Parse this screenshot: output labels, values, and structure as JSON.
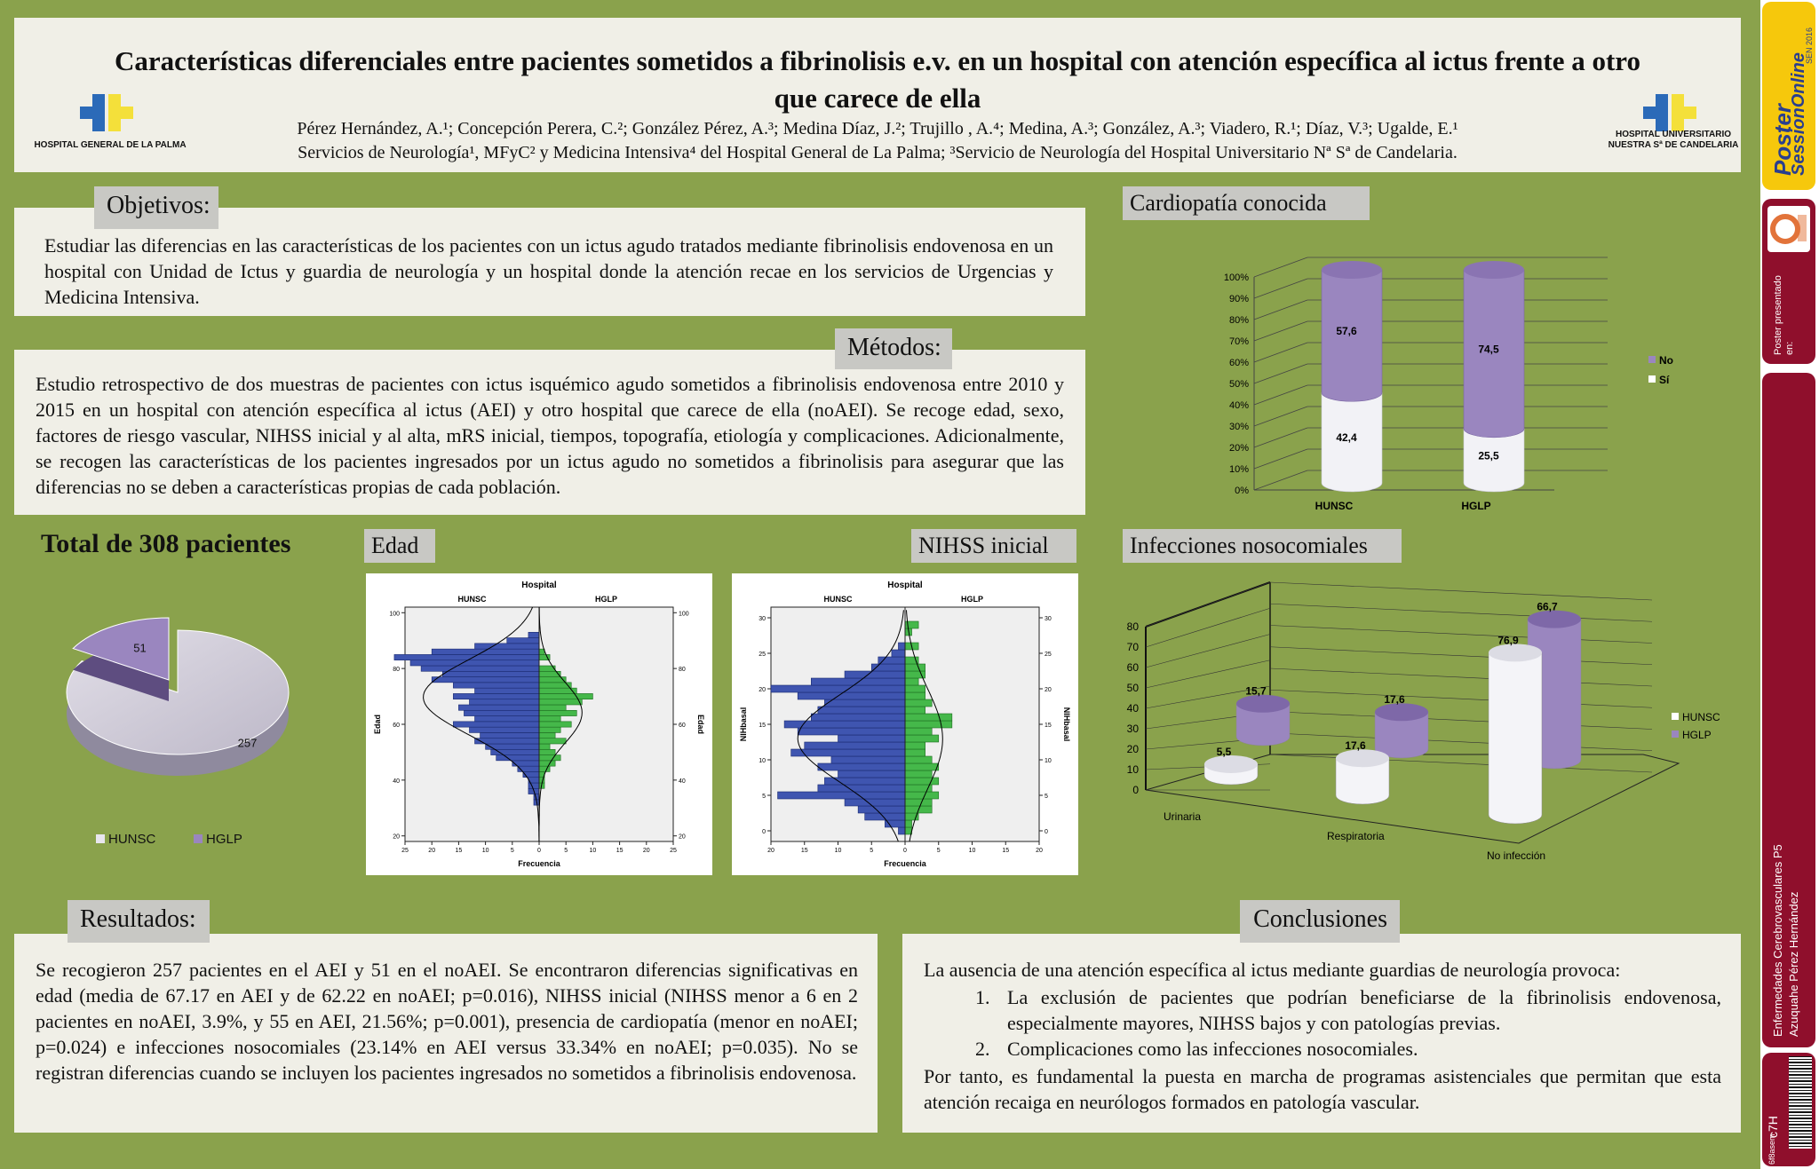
{
  "header": {
    "title": "Características diferenciales entre pacientes sometidos a fibrinolisis e.v. en un hospital con atención específica al ictus frente a otro que carece de ella",
    "authors": "Pérez Hernández, A.¹; Concepción Perera, C.²; González Pérez, A.³; Medina Díaz, J.²; Trujillo , A.⁴; Medina, A.³; González, A.³; Viadero, R.¹; Díaz, V.³; Ugalde, E.¹",
    "affiliations": "Servicios de Neurología¹, MFyC² y Medicina Intensiva⁴ del Hospital General de La Palma; ³Servicio de Neurología del Hospital Universitario Nª Sª de Candelaria.",
    "logo_left_caption": "HOSPITAL GENERAL DE LA PALMA",
    "logo_right_caption_1": "HOSPITAL UNIVERSITARIO",
    "logo_right_caption_2": "NUESTRA Sª DE CANDELARIA"
  },
  "objetivos": {
    "heading": "Objetivos:",
    "text": "Estudiar las diferencias en las características de los pacientes con un ictus agudo tratados mediante fibrinolisis endovenosa en un hospital con Unidad de Ictus y guardia de neurología y un hospital donde la atención recae en los servicios de Urgencias y Medicina Intensiva."
  },
  "metodos": {
    "heading": "Métodos:",
    "text": "Estudio retrospectivo de dos muestras de pacientes con ictus isquémico agudo sometidos a fibrinolisis endovenosa entre 2010 y 2015 en un hospital con atención específica al ictus (AEI) y otro hospital que carece de ella (noAEI). Se recoge edad, sexo, factores de riesgo vascular, NIHSS inicial y al alta, mRS inicial, tiempos, topografía, etiología y complicaciones. Adicionalmente, se recogen las características de los pacientes ingresados por un ictus agudo no sometidos a fibrinolisis para asegurar que las diferencias no se deben a características propias de cada población."
  },
  "total": {
    "heading": "Total de 308 pacientes"
  },
  "edad": {
    "heading": "Edad"
  },
  "nihss": {
    "heading": "NIHSS inicial"
  },
  "cardiopatia": {
    "heading": "Cardiopatía conocida"
  },
  "infecciones": {
    "heading": "Infecciones nosocomiales"
  },
  "resultados": {
    "heading": "Resultados:",
    "text": "Se recogieron 257 pacientes en el AEI y 51 en el noAEI. Se encontraron diferencias significativas en edad (media de 67.17 en AEI y de 62.22 en noAEI; p=0.016), NIHSS inicial (NIHSS menor a 6 en 2 pacientes en noAEI, 3.9%, y 55 en AEI, 21.56%; p=0.001), presencia de cardiopatía (menor en noAEI; p=0.024) e infecciones nosocomiales (23.14% en AEI versus 33.34% en noAEI; p=0.035). No se registran diferencias cuando se incluyen los pacientes ingresados no sometidos a fibrinolisis endovenosa."
  },
  "conclusiones": {
    "heading": "Conclusiones",
    "intro": "La ausencia de una atención específica al ictus mediante guardias de neurología provoca:",
    "items": [
      "La exclusión de pacientes que podrían beneficiarse de la fibrinolisis endovenosa, especialmente mayores, NIHSS bajos y con patologías previas.",
      "Complicaciones como las infecciones nosocomiales."
    ],
    "closing": "Por tanto, es fundamental la puesta en marcha de programas asistenciales que permitan que esta atención recaiga en neurólogos formados en patología vascular."
  },
  "sidebar": {
    "brand_1": "Poster",
    "brand_2": "SessionOnline",
    "brand_small": "SEN 2016",
    "presented": "Poster presentado en:",
    "session_1": "Enfermedades Cerebrovasculares P5",
    "session_2": "Azuquahe Pérez Hernández",
    "code": "c7H",
    "barcode_label": "6f8asem"
  },
  "colors": {
    "background": "#8aa24c",
    "panel": "#f0efe7",
    "hunsc": "#d4d0dc",
    "hglp": "#9a86bf",
    "si": "#f2f2f6",
    "no": "#9a86bf",
    "blue_bars": "#3f55b0",
    "green_bars": "#45b84a",
    "sidebar_red": "#8f0f2c",
    "sidebar_yellow": "#f6c80c"
  },
  "chart_data": [
    {
      "type": "pie",
      "title": "",
      "legend": "bottom",
      "labels": [
        "HUNSC",
        "HGLP"
      ],
      "values": [
        257,
        51
      ]
    },
    {
      "type": "bar",
      "title": "",
      "stacked": true,
      "percent": true,
      "categories": [
        "HUNSC",
        "HGLP"
      ],
      "series": [
        {
          "name": "Sí",
          "values": [
            42.4,
            25.5
          ]
        },
        {
          "name": "No",
          "values": [
            57.6,
            74.5
          ]
        }
      ],
      "yticks": [
        "0%",
        "10%",
        "20%",
        "30%",
        "40%",
        "50%",
        "60%",
        "70%",
        "80%",
        "90%",
        "100%"
      ],
      "ylim": [
        0,
        100
      ],
      "legend": "right"
    },
    {
      "type": "bar",
      "title": "",
      "categories": [
        "Urinaria",
        "Respiratoria",
        "No infección"
      ],
      "series": [
        {
          "name": "HUNSC",
          "values": [
            5.5,
            17.6,
            76.9
          ]
        },
        {
          "name": "HGLP",
          "values": [
            15.7,
            17.6,
            66.7
          ]
        }
      ],
      "yticks": [
        0,
        10,
        20,
        30,
        40,
        50,
        60,
        70,
        80
      ],
      "ylim": [
        0,
        80
      ],
      "legend": "right"
    },
    {
      "type": "bar",
      "orientation": "horizontal",
      "title": "Hospital",
      "panels": [
        "HUNSC",
        "HGLP"
      ],
      "xlabel": "Frecuencia",
      "ylabel": "Edad",
      "yticks": [
        20,
        40,
        60,
        80,
        100
      ],
      "xticks": [
        25,
        20,
        15,
        10,
        5,
        0,
        5,
        10,
        15,
        20,
        25
      ],
      "ylim": [
        18,
        102
      ],
      "bin_centers": [
        32,
        34,
        36,
        38,
        40,
        42,
        44,
        46,
        48,
        50,
        52,
        54,
        56,
        58,
        60,
        62,
        64,
        66,
        68,
        70,
        72,
        74,
        76,
        78,
        80,
        82,
        84,
        86,
        88,
        90,
        92
      ],
      "HUNSC": [
        1,
        1,
        2,
        2,
        2,
        3,
        4,
        5,
        8,
        9,
        10,
        12,
        11,
        13,
        16,
        12,
        14,
        15,
        13,
        16,
        12,
        16,
        20,
        18,
        22,
        24,
        27,
        20,
        12,
        6,
        2
      ],
      "HGLP": [
        0,
        0,
        0,
        1,
        1,
        1,
        2,
        3,
        4,
        3,
        2,
        5,
        3,
        4,
        6,
        4,
        7,
        5,
        8,
        10,
        7,
        6,
        5,
        4,
        3,
        0,
        2,
        1,
        0,
        0,
        0
      ]
    },
    {
      "type": "bar",
      "orientation": "horizontal",
      "title": "Hospital",
      "panels": [
        "HUNSC",
        "HGLP"
      ],
      "xlabel": "Frecuencia",
      "ylabel": "NIHbasal",
      "yticks": [
        0,
        5,
        10,
        15,
        20,
        25,
        30
      ],
      "xticks": [
        20,
        15,
        10,
        5,
        0,
        5,
        10,
        15,
        20
      ],
      "ylim": [
        -1.5,
        31.5
      ],
      "bin_centers": [
        0,
        1,
        2,
        3,
        4,
        5,
        6,
        7,
        8,
        9,
        10,
        11,
        12,
        13,
        14,
        15,
        16,
        17,
        18,
        19,
        20,
        21,
        22,
        23,
        24,
        25,
        26,
        27,
        28,
        29
      ],
      "HUNSC": [
        1,
        3,
        6,
        7,
        9,
        19,
        13,
        12,
        10,
        13,
        11,
        17,
        15,
        10,
        16,
        18,
        14,
        13,
        12,
        16,
        20,
        14,
        9,
        5,
        4,
        2,
        1,
        0,
        0,
        0
      ],
      "HGLP": [
        1,
        1,
        2,
        4,
        4,
        5,
        4,
        5,
        4,
        5,
        4,
        3,
        3,
        5,
        4,
        7,
        7,
        3,
        4,
        3,
        3,
        2,
        3,
        3,
        2,
        0,
        2,
        0,
        1,
        2
      ]
    }
  ]
}
